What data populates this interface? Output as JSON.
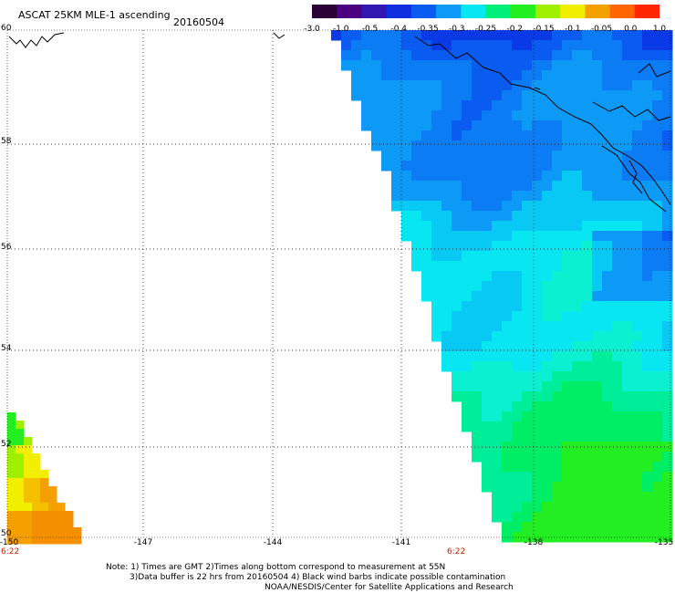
{
  "header": {
    "title": "ASCAT 25KM MLE-1 ascending",
    "date": "20160504"
  },
  "colorbar": {
    "labels": [
      "-3.0",
      "-1.0",
      "-0.5",
      "-0.4",
      "-0.35",
      "-0.3",
      "-0.25",
      "-0.2",
      "-0.15",
      "-0.1",
      "-0.05",
      "0.0",
      "1.0"
    ],
    "colors": [
      "#2a0036",
      "#4a0080",
      "#3018b0",
      "#1030e0",
      "#0a5cf0",
      "#0c9af6",
      "#08e6f2",
      "#00ee7a",
      "#22ee22",
      "#9ef000",
      "#f2ee00",
      "#f4a000",
      "#ff6600",
      "#ff2600"
    ]
  },
  "map": {
    "lat_labels": [
      "60",
      "58",
      "56",
      "54",
      "52",
      "50"
    ],
    "lon_labels": [
      "-150",
      "-147",
      "-144",
      "-141",
      "-138",
      "-135"
    ],
    "time_labels": [
      "6:22",
      "6:22"
    ],
    "gridlines": true
  },
  "notes": {
    "line1": "Note: 1) Times are GMT 2)Times along bottom correspond to measurement at 55N",
    "line2": "3)Data buffer is 22 hrs from 20160504 4) Black wind barbs indicate possible contamination",
    "line3": "NOAA/NESDIS/Center for Satellite Applications and Research"
  }
}
